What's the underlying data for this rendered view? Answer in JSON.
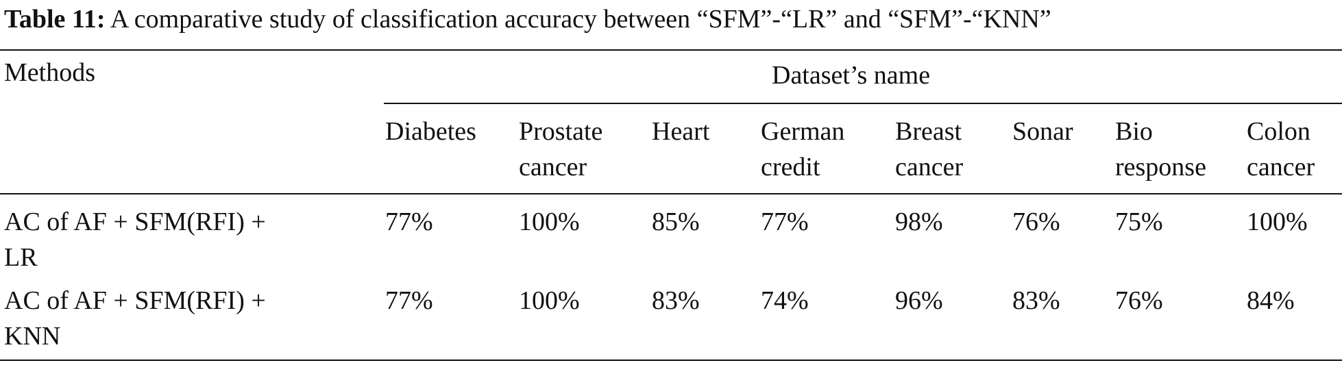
{
  "caption": {
    "label": "Table 11:",
    "text": "A comparative study of classification accuracy between “SFM”-“LR” and “SFM”-“KNN”"
  },
  "table": {
    "methods_header": "Methods",
    "group_header": "Dataset’s name",
    "columns": [
      "Diabetes",
      "Prostate\ncancer",
      "Heart",
      "German\ncredit",
      "Breast\ncancer",
      "Sonar",
      "Bio\nresponse",
      "Colon\ncancer"
    ],
    "rows": [
      {
        "method": "AC of AF + SFM(RFI) +\nLR",
        "values": [
          "77%",
          "100%",
          "85%",
          "77%",
          "98%",
          "76%",
          "75%",
          "100%"
        ]
      },
      {
        "method": "AC of AF + SFM(RFI) +\nKNN",
        "values": [
          "77%",
          "100%",
          "83%",
          "74%",
          "96%",
          "83%",
          "76%",
          "84%"
        ]
      }
    ]
  }
}
